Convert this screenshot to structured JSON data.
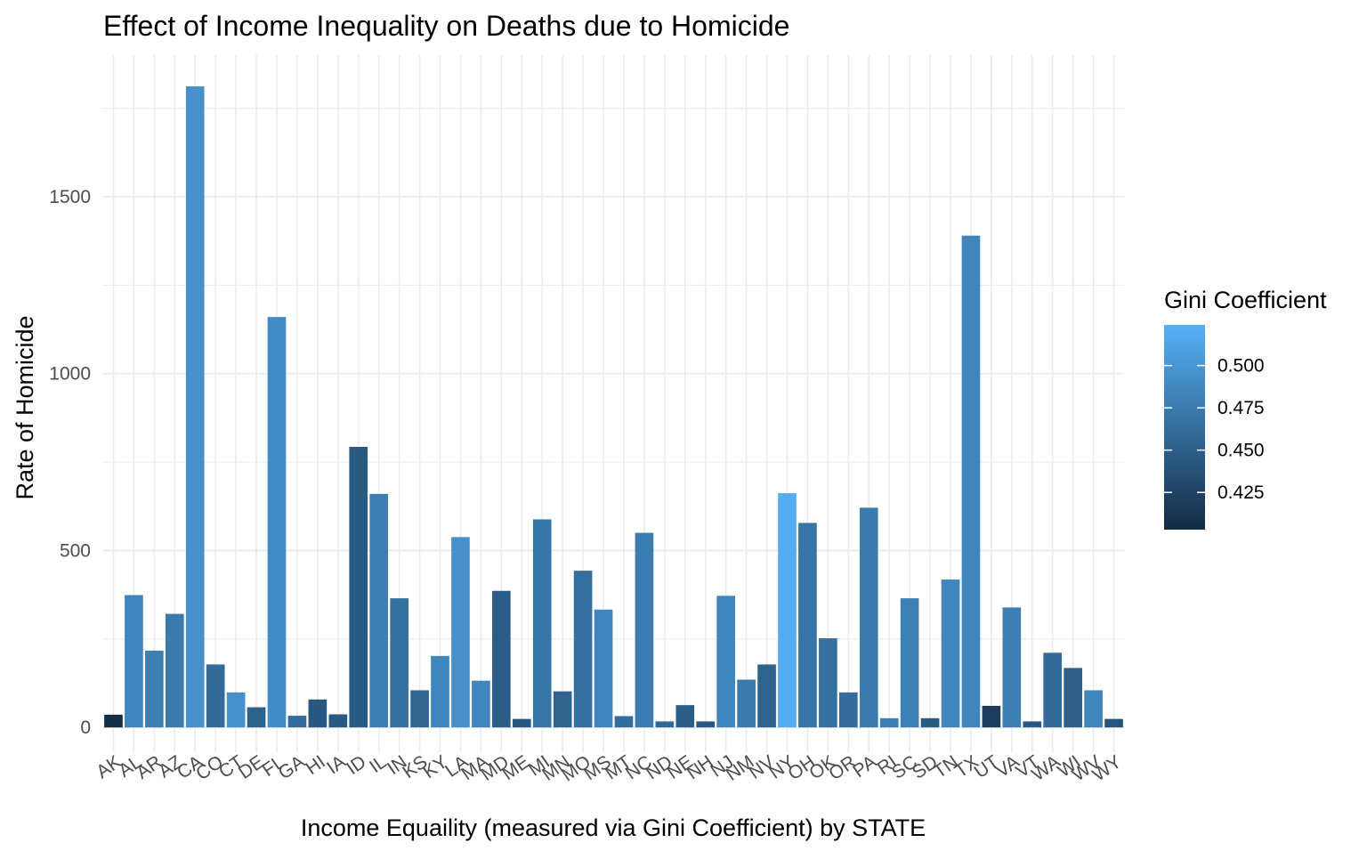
{
  "chart_data": {
    "type": "bar",
    "title": "Effect of Income Inequality on Deaths due to Homicide",
    "xlabel": "Income Equaility (measured via Gini Coefficient) by STATE",
    "ylabel": "Rate of Homicide",
    "categories": [
      "AK",
      "AL",
      "AR",
      "AZ",
      "CA",
      "CO",
      "CT",
      "DE",
      "FL",
      "GA",
      "HI",
      "IA",
      "ID",
      "IL",
      "IN",
      "KS",
      "KY",
      "LA",
      "MA",
      "MD",
      "ME",
      "MI",
      "MN",
      "MO",
      "MS",
      "MT",
      "NC",
      "ND",
      "NE",
      "NH",
      "NJ",
      "NM",
      "NV",
      "NY",
      "OH",
      "OK",
      "OR",
      "PA",
      "RI",
      "SC",
      "SD",
      "TN",
      "TX",
      "UT",
      "VA",
      "VT",
      "WA",
      "WI",
      "WV",
      "WY"
    ],
    "values": [
      36,
      374,
      217,
      321,
      1812,
      178,
      99,
      57,
      1160,
      33,
      79,
      37,
      793,
      660,
      365,
      105,
      202,
      538,
      132,
      386,
      24,
      588,
      102,
      443,
      333,
      32,
      550,
      17,
      63,
      17,
      372,
      135,
      178,
      662,
      578,
      252,
      99,
      621,
      26,
      365,
      26,
      418,
      1390,
      61,
      339,
      17,
      211,
      168,
      105,
      24
    ],
    "gini": [
      0.405,
      0.485,
      0.478,
      0.475,
      0.495,
      0.46,
      0.495,
      0.452,
      0.49,
      0.463,
      0.443,
      0.445,
      0.445,
      0.478,
      0.465,
      0.455,
      0.485,
      0.495,
      0.485,
      0.448,
      0.443,
      0.47,
      0.453,
      0.465,
      0.485,
      0.463,
      0.477,
      0.458,
      0.448,
      0.443,
      0.485,
      0.475,
      0.453,
      0.52,
      0.47,
      0.465,
      0.462,
      0.475,
      0.478,
      0.48,
      0.445,
      0.485,
      0.485,
      0.42,
      0.478,
      0.445,
      0.46,
      0.45,
      0.485,
      0.44
    ],
    "ylim": [
      -70,
      1900
    ],
    "yticks": [
      0,
      500,
      1000,
      1500
    ],
    "grid": true,
    "legend": {
      "title": "Gini Coefficient",
      "placement": "right",
      "range": [
        0.403,
        0.524
      ],
      "ticks": [
        0.425,
        0.45,
        0.475,
        0.5
      ],
      "tick_labels": [
        "0.425",
        "0.450",
        "0.475",
        "0.500"
      ],
      "color_low": "#132B43",
      "color_high": "#56B1F7"
    }
  }
}
